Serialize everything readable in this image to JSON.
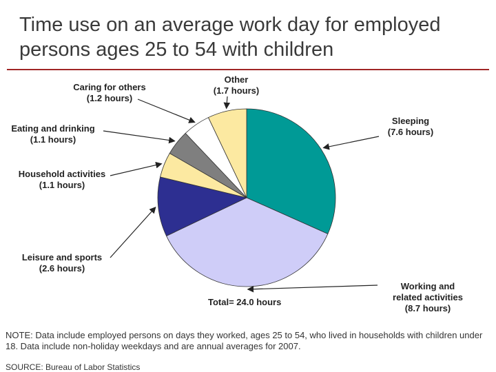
{
  "title_lines": [
    "Time use on an average work day for employed",
    "persons ages 25 to 54 with children"
  ],
  "colors": {
    "title_rule": "#a02525"
  },
  "chart_data": {
    "type": "pie",
    "slices": [
      {
        "label": "Sleeping",
        "value_text": "(7.6 hours)",
        "value": 7.6,
        "color": "#009a96"
      },
      {
        "label": "Working and related activities",
        "label_lines": [
          "Working and",
          "related activities"
        ],
        "value_text": "(8.7 hours)",
        "value": 8.7,
        "color": "#cfcdf8"
      },
      {
        "label": "Leisure and sports",
        "value_text": "(2.6 hours)",
        "value": 2.6,
        "color": "#2d2f91"
      },
      {
        "label": "Household activities",
        "value_text": "(1.1 hours)",
        "value": 1.1,
        "color": "#fce9a1"
      },
      {
        "label": "Eating and drinking",
        "value_text": "(1.1 hours)",
        "value": 1.1,
        "color": "#7f7f7f"
      },
      {
        "label": "Caring for others",
        "value_text": "(1.2 hours)",
        "value": 1.2,
        "color": "#ffffff"
      },
      {
        "label": "Other",
        "value_text": "(1.7 hours)",
        "value": 1.7,
        "color": "#fce9a1"
      }
    ],
    "total_text": "Total= 24.0 hours"
  },
  "note": "NOTE: Data include employed persons on days they worked, ages 25 to 54, who lived in households with children under 18. Data include non-holiday weekdays and are annual averages for 2007.",
  "source": "SOURCE: Bureau of Labor Statistics"
}
